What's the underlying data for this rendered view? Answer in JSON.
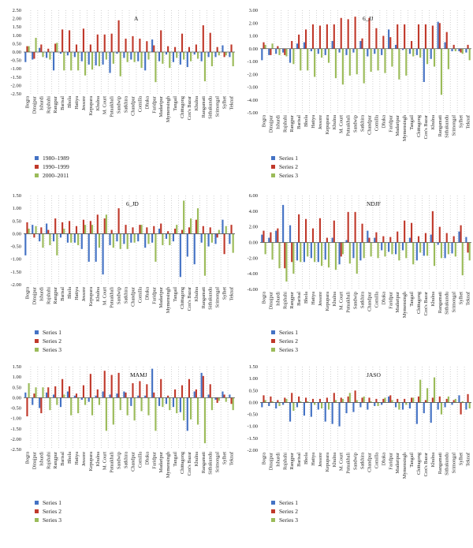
{
  "chart_data": [
    {
      "type": "bar",
      "title": "A",
      "ylim": [
        -2.5,
        2.5
      ],
      "yticks": [
        "2.50",
        "2.00",
        "1.50",
        "1.00",
        "0.50",
        "0.00",
        "-0.50",
        "-1.00",
        "-1.50",
        "-2.00",
        "-2.50"
      ],
      "grid": false,
      "legend_position": "bottom",
      "categories": [
        "Bogra",
        "Dinajpur",
        "Ishurdi",
        "Rajshahi",
        "Rangpur",
        "Barisal",
        "Bhola",
        "Hatiya",
        "Jessore",
        "Kepupara",
        "Khulna",
        "M. Court",
        "Patuakhali",
        "Sandwip",
        "Satkhira",
        "Chandpur",
        "Comilla",
        "Dhaka",
        "Faridpur",
        "Madaripur",
        "Mymensingh",
        "Tangail",
        "Chittagong",
        "Cox's Bazar",
        "Khulna",
        "Rangamati",
        "Sithakundu",
        "Srimongal",
        "Sylhet",
        "Teknaf"
      ],
      "series": [
        {
          "name": "1980–1989",
          "color": "#4472C4",
          "values": [
            -0.6,
            -0.45,
            0.25,
            -0.35,
            -1.1,
            -0.1,
            -0.2,
            -0.3,
            -0.55,
            -0.75,
            -0.8,
            -0.75,
            -1.25,
            -0.1,
            -0.35,
            -0.45,
            -0.55,
            -1.1,
            0.75,
            -0.55,
            -0.15,
            -0.6,
            -0.75,
            -0.9,
            -0.15,
            -0.55,
            -0.3,
            -0.3,
            0.4,
            -0.3
          ]
        },
        {
          "name": "1990–1999",
          "color": "#C0392B",
          "values": [
            0.35,
            -0.4,
            0.45,
            0.2,
            0.5,
            1.35,
            1.3,
            0.45,
            1.4,
            0.45,
            1.05,
            1.05,
            1.1,
            1.9,
            0.8,
            0.95,
            0.8,
            0.65,
            0.4,
            1.3,
            0.35,
            0.3,
            1.1,
            0.3,
            0.45,
            1.6,
            1.15,
            0.3,
            -0.3,
            0.45
          ]
        },
        {
          "name": "2000–2011",
          "color": "#9BBB59",
          "values": [
            0.35,
            0.85,
            -0.3,
            -0.45,
            0.55,
            -1.1,
            -1.1,
            -1.1,
            -1.4,
            -1.05,
            -0.85,
            -0.45,
            -0.7,
            -1.45,
            -0.6,
            -0.6,
            -0.95,
            -0.45,
            -1.8,
            -0.7,
            -0.95,
            -0.35,
            -0.45,
            -0.55,
            -0.4,
            -1.75,
            -0.85,
            -0.2,
            -0.2,
            -0.85
          ]
        }
      ]
    },
    {
      "type": "bar",
      "title": "6_JJ",
      "ylim": [
        -5.0,
        3.0
      ],
      "yticks": [
        "3.00",
        "2.00",
        "1.00",
        "0.00",
        "-1.00",
        "-2.00",
        "-3.00",
        "-4.00",
        "-5.00"
      ],
      "grid": false,
      "legend_position": "bottom",
      "categories": [
        "Bogra",
        "Dinajpur",
        "Ishurdi",
        "Rajshahi",
        "Rangpur",
        "Barisal",
        "Bhola",
        "Hatiya",
        "Jessore",
        "Kepupara",
        "Khulna",
        "M. Court",
        "Patuakhali",
        "Sandwip",
        "Satkhira",
        "Chandpur",
        "Comilla",
        "Dhaka",
        "Faridpur",
        "Madaripur",
        "Mymensingh",
        "Tangail",
        "Chittagong",
        "Cox's Bazar",
        "Khulna",
        "Rangamati",
        "Sithakundu",
        "Srimongal",
        "Sylhet",
        "Teknaf"
      ],
      "series": [
        {
          "name": "Series 1",
          "color": "#4472C4",
          "values": [
            -0.9,
            -0.5,
            -0.4,
            -0.3,
            -1.1,
            0.4,
            0.5,
            -0.2,
            -0.4,
            -0.5,
            0.6,
            -0.3,
            -0.5,
            -0.3,
            0.6,
            -0.6,
            -0.4,
            -0.5,
            1.5,
            0.3,
            -0.1,
            -0.4,
            -0.5,
            -2.6,
            -0.8,
            2.1,
            0.5,
            -0.2,
            -0.2,
            -0.3
          ]
        },
        {
          "name": "Series 2",
          "color": "#C0392B",
          "values": [
            0.5,
            -0.5,
            0.2,
            -0.5,
            0.6,
            1.1,
            1.5,
            1.9,
            1.8,
            1.9,
            1.9,
            2.4,
            2.3,
            2.5,
            0.8,
            2.4,
            1.6,
            1.0,
            0.9,
            1.9,
            1.9,
            0.6,
            1.9,
            1.9,
            1.8,
            2.0,
            1.3,
            0.3,
            -0.3,
            0.3
          ]
        },
        {
          "name": "Series 3",
          "color": "#9BBB59",
          "values": [
            0.3,
            0.4,
            -0.5,
            -0.6,
            -1.2,
            -1.7,
            -1.7,
            -2.2,
            -0.7,
            -1.1,
            -2.3,
            -2.8,
            -2.1,
            -2.0,
            -2.7,
            -1.8,
            -1.7,
            -1.9,
            -1.4,
            -2.4,
            -2.1,
            -0.6,
            -0.7,
            -1.2,
            -1.4,
            -3.6,
            -1.6,
            -0.2,
            -0.4,
            -0.9
          ]
        }
      ]
    },
    {
      "type": "bar",
      "title": "6_JD",
      "ylim": [
        -2.0,
        1.5
      ],
      "yticks": [
        "1.50",
        "1.00",
        "0.50",
        "0.00",
        "-0.50",
        "-1.00",
        "-1.50",
        "-2.00"
      ],
      "grid": false,
      "legend_position": "bottom",
      "categories": [
        "Bogra",
        "Dinajpur",
        "Ishurdi",
        "Rajshahi",
        "Rangpur",
        "Barisal",
        "Bhola",
        "Hatiya",
        "Jessore",
        "Kepupara",
        "Khulna",
        "M. Court",
        "Patuakhali",
        "Sandwip",
        "Satkhira",
        "Chandpur",
        "Comilla",
        "Dhaka",
        "Faridpur",
        "Madaripur",
        "Mymensingh",
        "Tangail",
        "Chittagong",
        "Cox's Bazar",
        "Khulna",
        "Rangamati",
        "Sithakundu",
        "Srimongal",
        "Sylhet",
        "Teknaf"
      ],
      "series": [
        {
          "name": "Series 1",
          "color": "#4472C4",
          "values": [
            -0.85,
            0.35,
            -0.3,
            0.4,
            -0.3,
            -0.15,
            -0.35,
            -0.35,
            -0.6,
            -1.1,
            -1.1,
            -1.6,
            -0.45,
            -0.3,
            -0.4,
            -0.35,
            -0.3,
            -0.55,
            -0.35,
            0.2,
            -0.2,
            -0.3,
            -1.7,
            -0.9,
            -1.2,
            -0.35,
            -0.5,
            -0.4,
            0.55,
            -0.4
          ]
        },
        {
          "name": "Series 2",
          "color": "#C0392B",
          "values": [
            0.45,
            -0.15,
            0.25,
            0.15,
            0.6,
            0.45,
            0.5,
            0.3,
            0.55,
            0.5,
            0.75,
            0.6,
            0.15,
            1.0,
            0.35,
            0.25,
            0.35,
            0.25,
            0.3,
            0.4,
            0.1,
            0.2,
            0.15,
            0.25,
            0.55,
            0.3,
            0.25,
            -0.15,
            -0.8,
            0.35
          ]
        },
        {
          "name": "Series 3",
          "color": "#9BBB59",
          "values": [
            0.2,
            0.3,
            -0.55,
            -0.45,
            -0.85,
            0.2,
            -0.35,
            -0.45,
            0.35,
            0.35,
            -0.55,
            0.75,
            -0.55,
            -0.6,
            -0.6,
            -0.35,
            0.35,
            -0.4,
            -1.1,
            -0.45,
            -0.45,
            0.35,
            1.3,
            0.6,
            1.0,
            -1.65,
            -0.35,
            0.15,
            0.3,
            -0.75
          ]
        }
      ]
    },
    {
      "type": "bar",
      "title": "NDJF",
      "ylim": [
        -6.0,
        6.0
      ],
      "yticks": [
        "6.00",
        "4.00",
        "2.00",
        "0.00",
        "-2.00",
        "-4.00",
        "-6.00"
      ],
      "grid": false,
      "legend_position": "bottom",
      "categories": [
        "Bogra",
        "Dinajpur",
        "Ishurdi",
        "Rajshahi",
        "Rangpur",
        "Barisal",
        "Bhola",
        "Hatiya",
        "Jessore",
        "Kepupara",
        "Khulna",
        "M. Court",
        "Patuakhali",
        "Sandwip",
        "Satkhira",
        "Chandpur",
        "Comilla",
        "Dhaka",
        "Faridpur",
        "Madaripur",
        "Mymensingh",
        "Tangail",
        "Chittagong",
        "Cox's Bazar",
        "Khulna",
        "Rangamati",
        "Sithakundu",
        "Srimongal",
        "Sylhet",
        "Teknaf"
      ],
      "series": [
        {
          "name": "Series 1",
          "color": "#4472C4",
          "values": [
            1.0,
            0.6,
            1.5,
            4.8,
            2.2,
            -2.3,
            -2.5,
            -2.0,
            -2.5,
            -2.2,
            0.6,
            -2.8,
            0.3,
            -2.0,
            -2.3,
            1.5,
            0.6,
            -1.0,
            -1.2,
            -1.5,
            -1.0,
            0.6,
            -2.3,
            -1.7,
            1.0,
            -0.3,
            -2.0,
            -1.4,
            1.4,
            0.7
          ]
        },
        {
          "name": "Series 2",
          "color": "#C0392B",
          "values": [
            1.5,
            1.3,
            1.8,
            -3.3,
            -2.5,
            3.6,
            3.0,
            1.8,
            3.1,
            0.6,
            2.8,
            -1.8,
            3.9,
            3.9,
            2.4,
            0.6,
            1.3,
            0.8,
            0.7,
            1.4,
            2.8,
            2.5,
            0.8,
            1.2,
            4.0,
            2.0,
            1.2,
            0.8,
            2.2,
            -1.3
          ]
        },
        {
          "name": "Series 3",
          "color": "#9BBB59",
          "values": [
            -1.5,
            -2.2,
            -3.3,
            -5.0,
            -4.0,
            -2.5,
            -1.8,
            -2.5,
            -3.0,
            -3.2,
            -3.5,
            -1.5,
            -2.7,
            -4.0,
            -2.0,
            -1.8,
            -2.0,
            -1.8,
            -1.5,
            -2.3,
            -2.0,
            -2.8,
            -1.3,
            -1.7,
            -3.0,
            -2.0,
            -1.5,
            -1.8,
            -4.2,
            -2.3
          ]
        }
      ]
    },
    {
      "type": "bar",
      "title": "MAMJ",
      "ylim": [
        -2.5,
        1.5
      ],
      "yticks": [
        "1.50",
        "1.00",
        "0.50",
        "0.00",
        "-0.50",
        "-1.00",
        "-1.50",
        "-2.00",
        "-2.50"
      ],
      "grid": false,
      "legend_position": "bottom",
      "categories": [
        "Bogra",
        "Dinajpur",
        "Ishurdi",
        "Rajshahi",
        "Rangpur",
        "Barisal",
        "Bhola",
        "Hatiya",
        "Jessore",
        "Kepupara",
        "Khulna",
        "M. Court",
        "Patuakhali",
        "Sandwip",
        "Satkhira",
        "Chandpur",
        "Comilla",
        "Dhaka",
        "Faridpur",
        "Madaripur",
        "Mymensingh",
        "Tangail",
        "Chittagong",
        "Cox's Bazar",
        "Khulna",
        "Rangamati",
        "Sithakundu",
        "Srimongal",
        "Sylhet",
        "Teknaf"
      ],
      "series": [
        {
          "name": "Series 1",
          "color": "#4472C4",
          "values": [
            0.25,
            -0.35,
            -0.5,
            0.25,
            0.15,
            -0.45,
            0.3,
            0.1,
            -0.1,
            -0.2,
            0.1,
            0.3,
            0.15,
            0.2,
            0.3,
            -0.4,
            0.1,
            0.1,
            1.4,
            -0.4,
            -0.3,
            -0.45,
            -0.7,
            -1.6,
            0.3,
            1.2,
            0.15,
            -0.1,
            0.3,
            0.15
          ]
        },
        {
          "name": "Series 2",
          "color": "#C0392B",
          "values": [
            -0.9,
            0.2,
            -0.75,
            0.5,
            0.55,
            0.9,
            0.55,
            0.2,
            0.6,
            1.15,
            0.4,
            1.3,
            1.1,
            1.2,
            0.25,
            0.7,
            0.8,
            0.65,
            0.25,
            0.9,
            0.1,
            0.4,
            0.6,
            0.9,
            0.4,
            1.05,
            0.65,
            -0.25,
            0.15,
            -0.3
          ]
        },
        {
          "name": "Series 3",
          "color": "#9BBB59",
          "values": [
            0.7,
            0.5,
            0.5,
            -0.6,
            -0.35,
            0.15,
            -0.85,
            -0.75,
            -0.35,
            -0.85,
            -0.35,
            -1.6,
            -1.3,
            -0.6,
            -0.85,
            -1.1,
            -0.65,
            -0.85,
            -1.6,
            -0.45,
            -0.6,
            -0.75,
            -1.1,
            -1.05,
            -1.3,
            -2.2,
            -0.6,
            -0.15,
            -0.2,
            -0.6
          ]
        }
      ]
    },
    {
      "type": "bar",
      "title": "JASO",
      "ylim": [
        -2.0,
        1.5
      ],
      "yticks": [
        "1.50",
        "1.00",
        "0.50",
        "0.00",
        "-0.50",
        "-1.00",
        "-1.50",
        "-2.00"
      ],
      "grid": false,
      "legend_position": "bottom",
      "categories": [
        "Bogra",
        "Dinajpur",
        "Ishurdi",
        "Rajshahi",
        "Rangpur",
        "Barisal",
        "Bhola",
        "Hatiya",
        "Jessore",
        "Kepupara",
        "Khulna",
        "M. Court",
        "Patuakhali",
        "Sandwip",
        "Satkhira",
        "Chandpur",
        "Comilla",
        "Dhaka",
        "Faridpur",
        "Madaripur",
        "Mymensingh",
        "Tangail",
        "Chittagong",
        "Cox's Bazar",
        "Khulna",
        "Rangamati",
        "Sithakundu",
        "Srimongal",
        "Sylhet",
        "Teknaf"
      ],
      "series": [
        {
          "name": "Series 1",
          "color": "#4472C4",
          "values": [
            -0.2,
            -0.15,
            -0.25,
            -0.1,
            -0.8,
            -0.2,
            -0.55,
            -0.6,
            -0.3,
            -0.8,
            -0.9,
            -1.0,
            -0.45,
            -0.4,
            -0.2,
            -0.3,
            -0.15,
            -0.1,
            0.25,
            -0.2,
            -0.3,
            -0.25,
            -0.9,
            -0.45,
            -0.85,
            -0.3,
            -0.2,
            -0.1,
            0.3,
            -0.3
          ]
        },
        {
          "name": "Series 2",
          "color": "#C0392B",
          "values": [
            0.3,
            0.25,
            0.1,
            0.2,
            0.4,
            0.25,
            0.2,
            0.15,
            0.15,
            0.2,
            0.4,
            0.2,
            0.25,
            0.5,
            0.2,
            0.2,
            0.15,
            0.15,
            0.3,
            0.15,
            0.15,
            0.2,
            0.25,
            0.1,
            0.2,
            0.25,
            0.15,
            0.1,
            -0.5,
            0.35
          ]
        },
        {
          "name": "Series 3",
          "color": "#9BBB59",
          "values": [
            0.1,
            0.05,
            -0.15,
            0.15,
            -0.35,
            0.05,
            0.05,
            -0.1,
            -0.25,
            -0.3,
            0.1,
            0.15,
            0.4,
            0.1,
            0.25,
            0.05,
            -0.15,
            0.2,
            0.1,
            -0.3,
            -0.1,
            0.2,
            0.95,
            0.6,
            1.05,
            -0.5,
            0.25,
            0.15,
            0.05,
            -0.25
          ]
        }
      ]
    }
  ]
}
